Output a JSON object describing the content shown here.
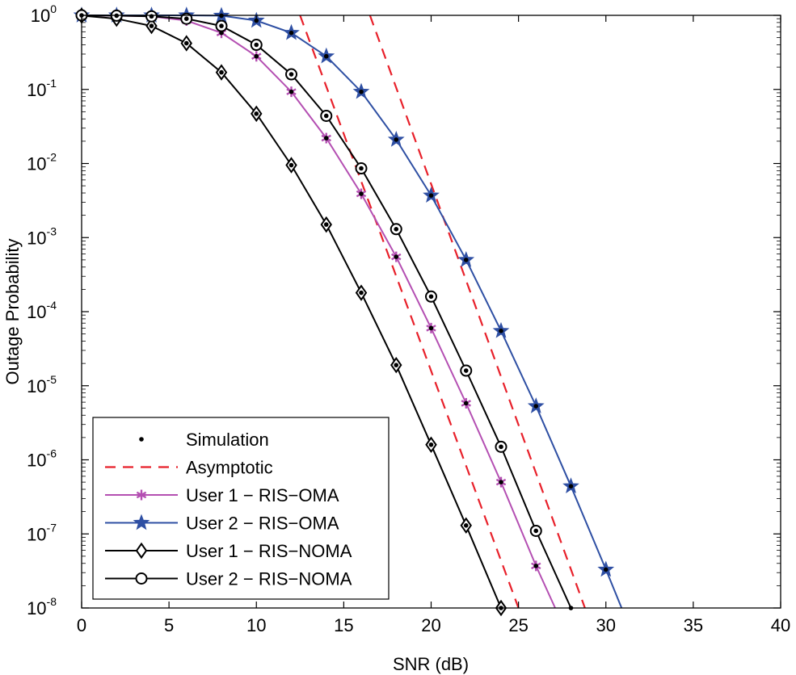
{
  "chart_data": {
    "type": "line",
    "xlabel": "SNR (dB)",
    "ylabel": "Outage Probability",
    "xlim": [
      0,
      40
    ],
    "ylim": [
      1e-08,
      1
    ],
    "yscale": "log",
    "grid": false,
    "xticks": [
      0,
      5,
      10,
      15,
      20,
      25,
      30,
      35,
      40
    ],
    "yticks": [
      {
        "base": "10",
        "exp": "0",
        "value": 1
      },
      {
        "base": "10",
        "exp": "-1",
        "value": 0.1
      },
      {
        "base": "10",
        "exp": "-2",
        "value": 0.01
      },
      {
        "base": "10",
        "exp": "-3",
        "value": 0.001
      },
      {
        "base": "10",
        "exp": "-4",
        "value": 0.0001
      },
      {
        "base": "10",
        "exp": "-5",
        "value": 1e-05
      },
      {
        "base": "10",
        "exp": "-6",
        "value": 1e-06
      },
      {
        "base": "10",
        "exp": "-7",
        "value": 1e-07
      },
      {
        "base": "10",
        "exp": "-8",
        "value": 1e-08
      }
    ],
    "legend": {
      "position": "bottom-left",
      "entries": [
        {
          "label": "Simulation",
          "kind": "dot",
          "color": "#000000"
        },
        {
          "label": "Asymptotic",
          "kind": "dashed",
          "color": "#e8202a"
        },
        {
          "label": "User 1 − RIS−OMA",
          "kind": "asterisk",
          "color": "#b44fb2"
        },
        {
          "label": "User 2 − RIS−OMA",
          "kind": "star",
          "color": "#2e4fa3"
        },
        {
          "label": "User 1 − RIS−NOMA",
          "kind": "diamond",
          "color": "#000000"
        },
        {
          "label": "User 2 − RIS−NOMA",
          "kind": "circle",
          "color": "#000000"
        }
      ]
    },
    "series": [
      {
        "name": "User 1 − RIS−OMA",
        "color": "#b44fb2",
        "marker": "asterisk",
        "x": [
          0,
          2,
          4,
          6,
          8,
          10,
          12,
          14,
          16,
          18,
          20,
          22,
          24,
          26
        ],
        "y": [
          1,
          0.99,
          0.97,
          0.85,
          0.58,
          0.28,
          0.093,
          0.022,
          0.0039,
          0.00055,
          6e-05,
          5.8e-06,
          5e-07,
          3.7e-08
        ],
        "line_x": [
          0,
          2,
          4,
          6,
          8,
          10,
          12,
          14,
          16,
          18,
          20,
          22,
          24,
          26,
          27.1
        ],
        "line_y": [
          1,
          0.99,
          0.97,
          0.85,
          0.58,
          0.28,
          0.093,
          0.022,
          0.0039,
          0.00055,
          6e-05,
          5.8e-06,
          5e-07,
          3.7e-08,
          1e-08
        ]
      },
      {
        "name": "User 2 − RIS−OMA",
        "color": "#2e4fa3",
        "marker": "star",
        "x": [
          0,
          2,
          4,
          6,
          8,
          10,
          12,
          14,
          16,
          18,
          20,
          22,
          24,
          26,
          28,
          30
        ],
        "y": [
          1,
          1,
          1,
          1,
          0.99,
          0.85,
          0.58,
          0.28,
          0.093,
          0.021,
          0.0037,
          0.0005,
          5.5e-05,
          5.3e-06,
          4.4e-07,
          3.3e-08
        ],
        "line_x": [
          0,
          2,
          4,
          6,
          8,
          10,
          12,
          14,
          16,
          18,
          20,
          22,
          24,
          26,
          28,
          30,
          30.9
        ],
        "line_y": [
          1,
          1,
          1,
          1,
          0.99,
          0.85,
          0.58,
          0.28,
          0.093,
          0.021,
          0.0037,
          0.0005,
          5.5e-05,
          5.3e-06,
          4.4e-07,
          3.3e-08,
          1e-08
        ]
      },
      {
        "name": "User 1 − RIS−NOMA",
        "color": "#000000",
        "marker": "diamond",
        "x": [
          0,
          2,
          4,
          6,
          8,
          10,
          12,
          14,
          16,
          18,
          20,
          22,
          24
        ],
        "y": [
          0.99,
          0.9,
          0.72,
          0.42,
          0.17,
          0.047,
          0.0095,
          0.0015,
          0.00018,
          1.9e-05,
          1.6e-06,
          1.3e-07,
          1e-08
        ],
        "line_x": [
          0,
          2,
          4,
          6,
          8,
          10,
          12,
          14,
          16,
          18,
          20,
          22,
          24
        ],
        "line_y": [
          0.99,
          0.9,
          0.72,
          0.42,
          0.17,
          0.047,
          0.0095,
          0.0015,
          0.00018,
          1.9e-05,
          1.6e-06,
          1.3e-07,
          1e-08
        ]
      },
      {
        "name": "User 2 − RIS−NOMA",
        "color": "#000000",
        "marker": "circle",
        "x": [
          0,
          2,
          4,
          6,
          8,
          10,
          12,
          14,
          16,
          18,
          20,
          22,
          24,
          26
        ],
        "y": [
          1,
          0.99,
          0.97,
          0.9,
          0.72,
          0.4,
          0.16,
          0.044,
          0.0086,
          0.0013,
          0.00016,
          1.6e-05,
          1.5e-06,
          1.1e-07
        ],
        "line_x": [
          0,
          2,
          4,
          6,
          8,
          10,
          12,
          14,
          16,
          18,
          20,
          22,
          24,
          26,
          28
        ],
        "line_y": [
          1,
          0.99,
          0.97,
          0.9,
          0.72,
          0.4,
          0.16,
          0.044,
          0.0086,
          0.0013,
          0.00016,
          1.6e-05,
          1.5e-06,
          1.1e-07,
          1e-08
        ]
      }
    ],
    "asymptotes": [
      {
        "name": "Asymptotic 1",
        "color": "#e8202a",
        "x": [
          12.5,
          25
        ],
        "y": [
          1,
          1e-08
        ]
      },
      {
        "name": "Asymptotic 2",
        "color": "#e8202a",
        "x": [
          16.5,
          28.8
        ],
        "y": [
          1,
          1e-08
        ]
      }
    ],
    "simulation_points": {
      "color": "#000000",
      "x": [
        0,
        2,
        4,
        6,
        8,
        10,
        12,
        14,
        16,
        18,
        20,
        22,
        24,
        26,
        28
      ],
      "note": "black dots on each curve"
    }
  }
}
